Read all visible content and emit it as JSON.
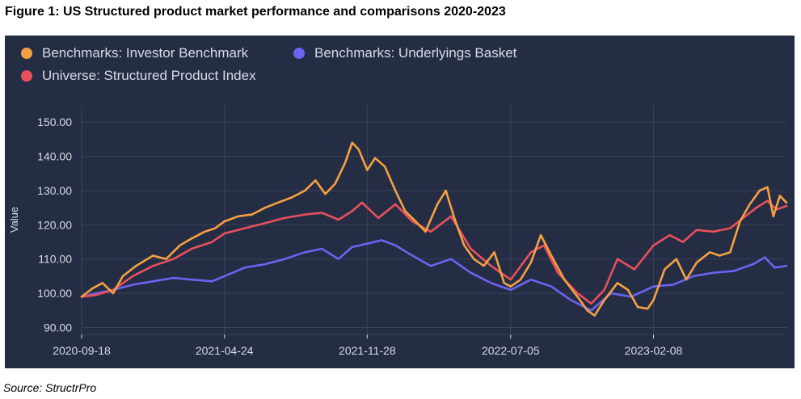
{
  "figure_title": "Figure 1: US Structured product market performance and comparisons 2020-2023",
  "source": "Source: StructrPro",
  "colors": {
    "background": "#252d44",
    "grid": "#3a4259",
    "text": "#d7dbe6",
    "investor": "#f5a142",
    "underlyings": "#6b63f2",
    "universe": "#e8505b"
  },
  "chart_data": {
    "type": "line",
    "title": "",
    "xlabel": "",
    "ylabel": "Value",
    "ylim": [
      88,
      155
    ],
    "yticks": [
      "90.00",
      "100.00",
      "110.00",
      "120.00",
      "130.00",
      "140.00",
      "150.00"
    ],
    "xticks": [
      "2020-09-18",
      "2021-04-24",
      "2021-11-28",
      "2022-07-05",
      "2023-02-08"
    ],
    "x_range": [
      "2020-09-18",
      "2023-08-30"
    ],
    "grid": true,
    "legend_position": "top-left",
    "series": [
      {
        "name": "Benchmarks: Investor Benchmark",
        "color_key": "investor",
        "points": [
          [
            "2020-09-18",
            99.0
          ],
          [
            "2020-10-05",
            101.5
          ],
          [
            "2020-10-20",
            103.0
          ],
          [
            "2020-11-05",
            100.0
          ],
          [
            "2020-11-20",
            105.0
          ],
          [
            "2020-12-10",
            108.0
          ],
          [
            "2021-01-05",
            111.0
          ],
          [
            "2021-01-25",
            110.0
          ],
          [
            "2021-02-15",
            114.0
          ],
          [
            "2021-03-05",
            116.0
          ],
          [
            "2021-03-25",
            118.0
          ],
          [
            "2021-04-10",
            119.0
          ],
          [
            "2021-04-24",
            121.0
          ],
          [
            "2021-05-15",
            122.5
          ],
          [
            "2021-06-05",
            123.0
          ],
          [
            "2021-06-25",
            125.0
          ],
          [
            "2021-07-15",
            126.5
          ],
          [
            "2021-08-05",
            128.0
          ],
          [
            "2021-08-25",
            130.0
          ],
          [
            "2021-09-10",
            133.0
          ],
          [
            "2021-09-25",
            129.0
          ],
          [
            "2021-10-10",
            132.0
          ],
          [
            "2021-10-25",
            138.0
          ],
          [
            "2021-11-05",
            144.0
          ],
          [
            "2021-11-15",
            142.0
          ],
          [
            "2021-11-28",
            136.0
          ],
          [
            "2021-12-10",
            139.5
          ],
          [
            "2021-12-25",
            137.0
          ],
          [
            "2022-01-10",
            130.0
          ],
          [
            "2022-01-25",
            124.0
          ],
          [
            "2022-02-10",
            121.0
          ],
          [
            "2022-02-25",
            118.0
          ],
          [
            "2022-03-15",
            126.0
          ],
          [
            "2022-03-28",
            130.0
          ],
          [
            "2022-04-10",
            122.0
          ],
          [
            "2022-04-25",
            114.0
          ],
          [
            "2022-05-10",
            110.0
          ],
          [
            "2022-05-25",
            108.0
          ],
          [
            "2022-06-10",
            112.0
          ],
          [
            "2022-06-25",
            103.0
          ],
          [
            "2022-07-05",
            102.0
          ],
          [
            "2022-07-20",
            104.0
          ],
          [
            "2022-08-05",
            109.0
          ],
          [
            "2022-08-20",
            117.0
          ],
          [
            "2022-09-05",
            111.0
          ],
          [
            "2022-09-25",
            104.0
          ],
          [
            "2022-10-15",
            99.0
          ],
          [
            "2022-10-30",
            95.0
          ],
          [
            "2022-11-10",
            93.5
          ],
          [
            "2022-11-25",
            98.0
          ],
          [
            "2022-12-15",
            103.0
          ],
          [
            "2022-12-31",
            101.0
          ],
          [
            "2023-01-15",
            96.0
          ],
          [
            "2023-01-30",
            95.5
          ],
          [
            "2023-02-08",
            98.0
          ],
          [
            "2023-02-25",
            107.0
          ],
          [
            "2023-03-15",
            110.0
          ],
          [
            "2023-03-30",
            104.0
          ],
          [
            "2023-04-15",
            109.0
          ],
          [
            "2023-05-05",
            112.0
          ],
          [
            "2023-05-20",
            111.0
          ],
          [
            "2023-06-05",
            112.0
          ],
          [
            "2023-06-20",
            121.0
          ],
          [
            "2023-07-05",
            126.0
          ],
          [
            "2023-07-20",
            130.0
          ],
          [
            "2023-08-01",
            131.0
          ],
          [
            "2023-08-10",
            122.5
          ],
          [
            "2023-08-20",
            128.5
          ],
          [
            "2023-08-30",
            126.5
          ]
        ]
      },
      {
        "name": "Benchmarks: Underlyings Basket",
        "color_key": "underlyings",
        "points": [
          [
            "2020-09-18",
            99.0
          ],
          [
            "2020-10-10",
            100.0
          ],
          [
            "2020-11-05",
            101.0
          ],
          [
            "2020-12-05",
            102.5
          ],
          [
            "2021-01-05",
            103.5
          ],
          [
            "2021-02-05",
            104.5
          ],
          [
            "2021-03-05",
            104.0
          ],
          [
            "2021-04-05",
            103.5
          ],
          [
            "2021-04-24",
            105.0
          ],
          [
            "2021-05-25",
            107.5
          ],
          [
            "2021-06-25",
            108.5
          ],
          [
            "2021-07-25",
            110.0
          ],
          [
            "2021-08-25",
            112.0
          ],
          [
            "2021-09-20",
            113.0
          ],
          [
            "2021-10-15",
            110.0
          ],
          [
            "2021-11-05",
            113.5
          ],
          [
            "2021-11-28",
            114.5
          ],
          [
            "2021-12-20",
            115.5
          ],
          [
            "2022-01-10",
            114.0
          ],
          [
            "2022-02-05",
            111.0
          ],
          [
            "2022-03-05",
            108.0
          ],
          [
            "2022-04-05",
            110.0
          ],
          [
            "2022-05-05",
            106.0
          ],
          [
            "2022-06-05",
            103.0
          ],
          [
            "2022-07-05",
            101.0
          ],
          [
            "2022-08-05",
            104.0
          ],
          [
            "2022-09-05",
            102.0
          ],
          [
            "2022-10-05",
            98.0
          ],
          [
            "2022-11-05",
            95.0
          ],
          [
            "2022-12-05",
            100.0
          ],
          [
            "2023-01-05",
            99.0
          ],
          [
            "2023-02-08",
            102.0
          ],
          [
            "2023-03-10",
            102.5
          ],
          [
            "2023-04-10",
            105.0
          ],
          [
            "2023-05-10",
            106.0
          ],
          [
            "2023-06-10",
            106.5
          ],
          [
            "2023-07-10",
            108.5
          ],
          [
            "2023-07-28",
            110.5
          ],
          [
            "2023-08-12",
            107.5
          ],
          [
            "2023-08-30",
            108.0
          ]
        ]
      },
      {
        "name": "Universe: Structured Product Index",
        "color_key": "universe",
        "points": [
          [
            "2020-09-18",
            99.0
          ],
          [
            "2020-10-10",
            99.5
          ],
          [
            "2020-11-05",
            101.0
          ],
          [
            "2020-12-05",
            105.0
          ],
          [
            "2021-01-05",
            108.0
          ],
          [
            "2021-02-05",
            110.0
          ],
          [
            "2021-03-05",
            113.0
          ],
          [
            "2021-04-05",
            115.0
          ],
          [
            "2021-04-24",
            117.5
          ],
          [
            "2021-05-25",
            119.0
          ],
          [
            "2021-06-25",
            120.5
          ],
          [
            "2021-07-25",
            122.0
          ],
          [
            "2021-08-25",
            123.0
          ],
          [
            "2021-09-20",
            123.5
          ],
          [
            "2021-10-15",
            121.5
          ],
          [
            "2021-11-05",
            124.0
          ],
          [
            "2021-11-20",
            126.5
          ],
          [
            "2021-12-15",
            122.0
          ],
          [
            "2022-01-10",
            126.0
          ],
          [
            "2022-02-05",
            121.0
          ],
          [
            "2022-03-05",
            118.0
          ],
          [
            "2022-04-05",
            122.5
          ],
          [
            "2022-05-05",
            113.0
          ],
          [
            "2022-06-05",
            108.0
          ],
          [
            "2022-07-05",
            104.0
          ],
          [
            "2022-08-05",
            112.0
          ],
          [
            "2022-08-25",
            114.0
          ],
          [
            "2022-09-15",
            106.0
          ],
          [
            "2022-10-15",
            100.0
          ],
          [
            "2022-11-05",
            97.0
          ],
          [
            "2022-11-25",
            101.0
          ],
          [
            "2022-12-15",
            110.0
          ],
          [
            "2023-01-10",
            107.0
          ],
          [
            "2023-02-08",
            114.0
          ],
          [
            "2023-03-05",
            117.0
          ],
          [
            "2023-03-25",
            115.0
          ],
          [
            "2023-04-15",
            118.5
          ],
          [
            "2023-05-10",
            118.0
          ],
          [
            "2023-06-05",
            119.0
          ],
          [
            "2023-06-25",
            122.0
          ],
          [
            "2023-07-15",
            125.0
          ],
          [
            "2023-08-01",
            127.0
          ],
          [
            "2023-08-15",
            124.5
          ],
          [
            "2023-08-30",
            125.5
          ]
        ]
      }
    ]
  }
}
